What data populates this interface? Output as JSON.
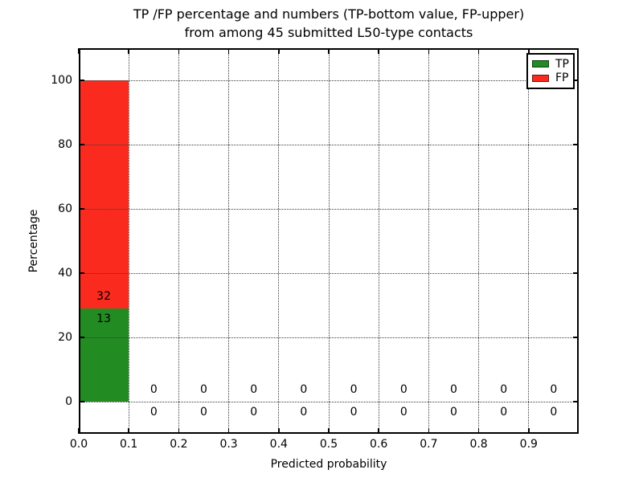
{
  "chart_data": {
    "type": "bar",
    "stacked": true,
    "title_lines": [
      "TP /FP percentage and numbers (TP-bottom value, FP-upper)",
      "from among 45 submitted L50-type contacts"
    ],
    "xlabel": "Predicted probability",
    "ylabel": "Percentage",
    "xlim": [
      0.0,
      1.0
    ],
    "ylim": [
      -10,
      110
    ],
    "xticks": [
      0.0,
      0.1,
      0.2,
      0.3,
      0.4,
      0.5,
      0.6,
      0.7,
      0.8,
      0.9
    ],
    "xtick_labels": [
      "0.0",
      "0.1",
      "0.2",
      "0.3",
      "0.4",
      "0.5",
      "0.6",
      "0.7",
      "0.8",
      "0.9"
    ],
    "yticks": [
      0,
      20,
      40,
      60,
      80,
      100
    ],
    "ytick_labels": [
      "0",
      "20",
      "40",
      "60",
      "80",
      "100"
    ],
    "grid": {
      "enabled": true,
      "style": "dotted",
      "axes": "both"
    },
    "total_contacts": 45,
    "bin_width": 0.1,
    "bin_centers": [
      0.05,
      0.15,
      0.25,
      0.35,
      0.45,
      0.55,
      0.65,
      0.75,
      0.85,
      0.95
    ],
    "series": [
      {
        "name": "TP",
        "color": "#228b22",
        "counts": [
          13,
          0,
          0,
          0,
          0,
          0,
          0,
          0,
          0,
          0
        ],
        "percentages": [
          28.9,
          0,
          0,
          0,
          0,
          0,
          0,
          0,
          0,
          0
        ]
      },
      {
        "name": "FP",
        "color": "#fa2b1e",
        "counts": [
          32,
          0,
          0,
          0,
          0,
          0,
          0,
          0,
          0,
          0
        ],
        "percentages": [
          71.1,
          0,
          0,
          0,
          0,
          0,
          0,
          0,
          0,
          0
        ]
      }
    ],
    "bar_label_note": "TP count shown below segment boundary, FP count shown above it",
    "legend": {
      "position": "upper right",
      "entries": [
        "TP",
        "FP"
      ]
    }
  }
}
